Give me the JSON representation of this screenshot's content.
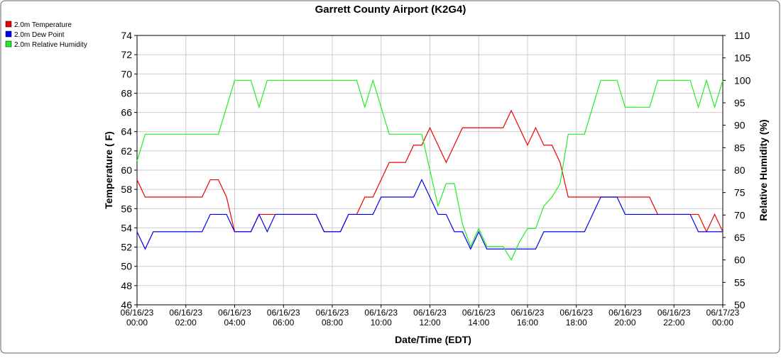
{
  "chart_data": {
    "type": "line",
    "title": "Garrett County Airport (K2G4)",
    "xlabel": "Date/Time (EDT)",
    "ylabel": "Temperature ( F)",
    "y2label": "Relative Humidity (%)",
    "x": [
      0,
      20,
      40,
      60,
      80,
      100,
      120,
      140,
      160,
      180,
      200,
      220,
      240,
      260,
      280,
      300,
      320,
      340,
      360,
      380,
      400,
      420,
      440,
      460,
      480,
      500,
      520,
      540,
      560,
      580,
      600,
      620,
      640,
      660,
      680,
      700,
      720,
      740,
      760,
      780,
      800,
      820,
      840,
      860,
      880,
      900,
      920,
      940,
      960,
      980,
      1000,
      1020,
      1040,
      1060,
      1080,
      1100,
      1120,
      1140,
      1160,
      1180,
      1200,
      1220,
      1240,
      1260,
      1280,
      1300,
      1320,
      1340,
      1360,
      1380,
      1400,
      1420,
      1440
    ],
    "xlim": [
      0,
      1440
    ],
    "xticks": [
      {
        "value": 0,
        "label": "06/16/23 00:00"
      },
      {
        "value": 120,
        "label": "06/16/23 02:00"
      },
      {
        "value": 240,
        "label": "06/16/23 04:00"
      },
      {
        "value": 360,
        "label": "06/16/23 06:00"
      },
      {
        "value": 480,
        "label": "06/16/23 08:00"
      },
      {
        "value": 600,
        "label": "06/16/23 10:00"
      },
      {
        "value": 720,
        "label": "06/16/23 12:00"
      },
      {
        "value": 840,
        "label": "06/16/23 14:00"
      },
      {
        "value": 960,
        "label": "06/16/23 16:00"
      },
      {
        "value": 1080,
        "label": "06/16/23 18:00"
      },
      {
        "value": 1200,
        "label": "06/16/23 20:00"
      },
      {
        "value": 1320,
        "label": "06/16/23 22:00"
      },
      {
        "value": 1440,
        "label": "06/17/23 00:00"
      }
    ],
    "ylim": [
      46,
      74
    ],
    "yticks": [
      46,
      48,
      50,
      52,
      54,
      56,
      58,
      60,
      62,
      64,
      66,
      68,
      70,
      72,
      74
    ],
    "y2lim": [
      50,
      110
    ],
    "y2ticks": [
      50,
      55,
      60,
      65,
      70,
      75,
      80,
      85,
      90,
      95,
      100,
      105,
      110
    ],
    "grid": true,
    "series": [
      {
        "name": "2.0m Temperature",
        "color": "#ee0000",
        "values": [
          59,
          57.2,
          57.2,
          57.2,
          57.2,
          57.2,
          57.2,
          57.2,
          57.2,
          59,
          59,
          57.2,
          53.6,
          53.6,
          53.6,
          55.4,
          55.4,
          55.4,
          55.4,
          55.4,
          55.4,
          55.4,
          55.4,
          53.6,
          53.6,
          53.6,
          55.4,
          55.4,
          57.2,
          57.2,
          59,
          60.8,
          60.8,
          60.8,
          62.6,
          62.6,
          64.4,
          62.6,
          60.8,
          62.6,
          64.4,
          64.4,
          64.4,
          64.4,
          64.4,
          64.4,
          66.2,
          64.4,
          62.6,
          64.4,
          62.6,
          62.6,
          60.8,
          57.2,
          57.2,
          57.2,
          57.2,
          57.2,
          57.2,
          57.2,
          57.2,
          57.2,
          57.2,
          57.2,
          55.4,
          55.4,
          55.4,
          55.4,
          55.4,
          55.4,
          53.6,
          55.4,
          53.6
        ]
      },
      {
        "name": "2.0m Dew Point",
        "color": "#0000ee",
        "values": [
          53.6,
          51.8,
          53.6,
          53.6,
          53.6,
          53.6,
          53.6,
          53.6,
          53.6,
          55.4,
          55.4,
          55.4,
          53.6,
          53.6,
          53.6,
          55.4,
          53.6,
          55.4,
          55.4,
          55.4,
          55.4,
          55.4,
          55.4,
          53.6,
          53.6,
          53.6,
          55.4,
          55.4,
          55.4,
          55.4,
          57.2,
          57.2,
          57.2,
          57.2,
          57.2,
          59,
          57.2,
          55.4,
          55.4,
          53.6,
          53.6,
          51.8,
          53.6,
          51.8,
          51.8,
          51.8,
          51.8,
          51.8,
          51.8,
          51.8,
          53.6,
          53.6,
          53.6,
          53.6,
          53.6,
          53.6,
          55.4,
          57.2,
          57.2,
          57.2,
          55.4,
          55.4,
          55.4,
          55.4,
          55.4,
          55.4,
          55.4,
          55.4,
          55.4,
          53.6,
          53.6,
          53.6,
          53.6
        ]
      },
      {
        "name": "2.0m Relative Humidity",
        "color": "#22ee22",
        "axis": "y2",
        "values": [
          82,
          88,
          88,
          88,
          88,
          88,
          88,
          88,
          88,
          88,
          88,
          94,
          100,
          100,
          100,
          94,
          100,
          100,
          100,
          100,
          100,
          100,
          100,
          100,
          100,
          100,
          100,
          100,
          94,
          100,
          94,
          88,
          88,
          88,
          88,
          88,
          80,
          72,
          77,
          77,
          68,
          63,
          67,
          63,
          63,
          63,
          60,
          64,
          67,
          67,
          72,
          74,
          77,
          88,
          88,
          88,
          94,
          100,
          100,
          100,
          94,
          94,
          94,
          94,
          100,
          100,
          100,
          100,
          100,
          94,
          100,
          94,
          100
        ]
      }
    ]
  }
}
